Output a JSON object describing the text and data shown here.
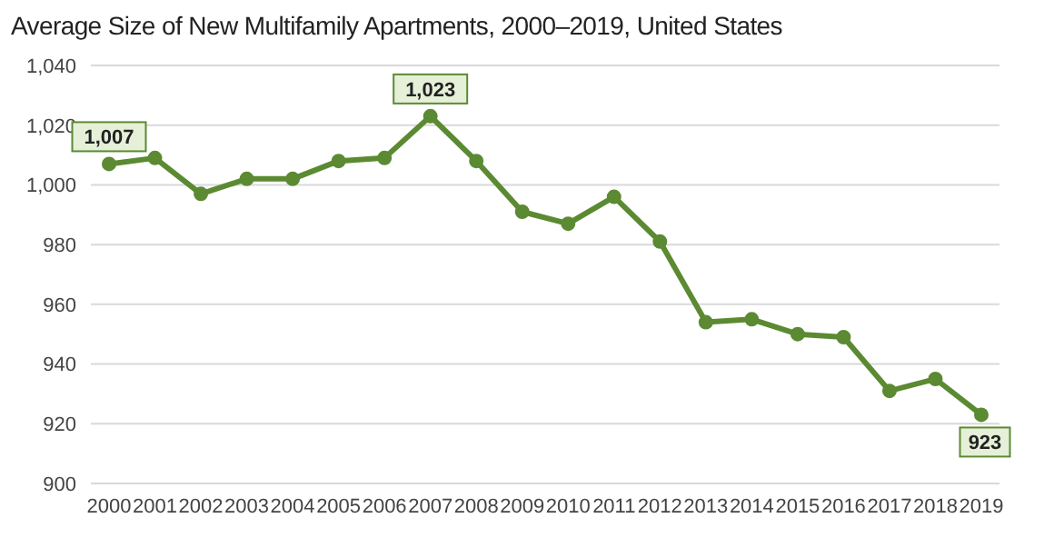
{
  "chart_data": {
    "type": "line",
    "title": "Average Size of New Multifamily Apartments, 2000–2019, United States",
    "categories": [
      "2000",
      "2001",
      "2002",
      "2003",
      "2004",
      "2005",
      "2006",
      "2007",
      "2008",
      "2009",
      "2010",
      "2011",
      "2012",
      "2013",
      "2014",
      "2015",
      "2016",
      "2017",
      "2018",
      "2019"
    ],
    "series": [
      {
        "color": "#5b8a32",
        "values": [
          1007,
          1009,
          997,
          1002,
          1002,
          1008,
          1009,
          1023,
          1008,
          991,
          987,
          996,
          981,
          954,
          955,
          950,
          949,
          931,
          935,
          923
        ],
        "value_labels": [
          "1,007",
          null,
          null,
          null,
          null,
          null,
          null,
          "1,023",
          null,
          null,
          null,
          null,
          null,
          null,
          null,
          null,
          null,
          null,
          null,
          "923"
        ]
      }
    ],
    "ylim": [
      900,
      1040
    ],
    "yticks": [
      {
        "value": 900,
        "label": "900"
      },
      {
        "value": 920,
        "label": "920"
      },
      {
        "value": 940,
        "label": "940"
      },
      {
        "value": 960,
        "label": "960"
      },
      {
        "value": 980,
        "label": "980"
      },
      {
        "value": 1000,
        "label": "1,000"
      },
      {
        "value": 1020,
        "label": "1,020"
      },
      {
        "value": 1040,
        "label": "1,040"
      }
    ],
    "grid": "y",
    "marker": "circle",
    "line_style": "solid",
    "legend": false
  }
}
